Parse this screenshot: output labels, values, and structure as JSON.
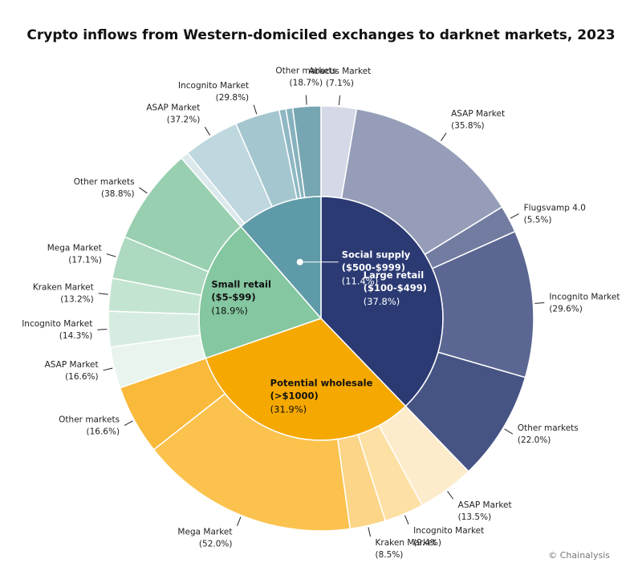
{
  "chart_data": {
    "type": "sunburst",
    "title": "Crypto inflows from Western-domiciled exchanges to darknet markets, 2023",
    "credit": "© Chainalysis",
    "categories": [
      {
        "name": "Large retail",
        "range": "($100-$499)",
        "value": 37.8,
        "value_label": "(37.8%)",
        "color": "#2b3a73",
        "children": [
          {
            "name": "Abacus Market",
            "value": 7.1,
            "value_label": "(7.1%)",
            "color": "#d5d8e6"
          },
          {
            "name": "ASAP Market",
            "value": 35.8,
            "value_label": "(35.8%)",
            "color": "#959db8"
          },
          {
            "name": "Flugsvamp 4.0",
            "value": 5.5,
            "value_label": "(5.5%)",
            "color": "#727ca1"
          },
          {
            "name": "Incognito Market",
            "value": 29.6,
            "value_label": "(29.6%)",
            "color": "#5b6792"
          },
          {
            "name": "Other markets",
            "value": 22.0,
            "value_label": "(22.0%)",
            "color": "#465484"
          }
        ]
      },
      {
        "name": "Potential wholesale",
        "range": "(>$1000)",
        "value": 31.9,
        "value_label": "(31.9%)",
        "color": "#f5a800",
        "children": [
          {
            "name": "ASAP Market",
            "value": 13.5,
            "value_label": "(13.5%)",
            "color": "#fdeccb"
          },
          {
            "name": "Incognito Market",
            "value": 9.4,
            "value_label": "(9.4%)",
            "color": "#fde0a4"
          },
          {
            "name": "Kraken Market",
            "value": 8.5,
            "value_label": "(8.5%)",
            "color": "#fcd588"
          },
          {
            "name": "Mega Market",
            "value": 52.0,
            "value_label": "(52.0%)",
            "color": "#fbc24e"
          },
          {
            "name": "Other markets",
            "value": 16.6,
            "value_label": "(16.6%)",
            "color": "#f9b93a"
          }
        ]
      },
      {
        "name": "Small retail",
        "range": "($5-$99)",
        "value": 18.9,
        "value_label": "(18.9%)",
        "color": "#84c7a0",
        "children": [
          {
            "name": "ASAP Market",
            "value": 16.6,
            "value_label": "(16.6%)",
            "color": "#e8f4ed"
          },
          {
            "name": "Incognito Market",
            "value": 14.3,
            "value_label": "(14.3%)",
            "color": "#d6ece0"
          },
          {
            "name": "Kraken Market",
            "value": 13.2,
            "value_label": "(13.2%)",
            "color": "#c3e4d1"
          },
          {
            "name": "Mega Market",
            "value": 17.1,
            "value_label": "(17.1%)",
            "color": "#acd9bf"
          },
          {
            "name": "Other markets",
            "value": 38.8,
            "value_label": "(38.8%)",
            "color": "#98cfb0"
          }
        ]
      },
      {
        "name": "Social supply",
        "range": "($500-$999)",
        "value": 11.4,
        "value_label": "(11.4%)",
        "color": "#5f9aa8",
        "children": [
          {
            "name": null,
            "value": 5.3,
            "color": "#dbe8ec"
          },
          {
            "name": "ASAP Market",
            "value": 37.2,
            "value_label": "(37.2%)",
            "color": "#bfd7de"
          },
          {
            "name": "Incognito Market",
            "value": 29.8,
            "value_label": "(29.8%)",
            "color": "#a4c6cf"
          },
          {
            "name": null,
            "value": 4.5,
            "color": "#8fb8c3"
          },
          {
            "name": null,
            "value": 4.5,
            "color": "#86b2bd"
          },
          {
            "name": "Other markets",
            "value": 18.7,
            "value_label": "(18.7%)",
            "color": "#76a6b2"
          }
        ]
      }
    ]
  }
}
